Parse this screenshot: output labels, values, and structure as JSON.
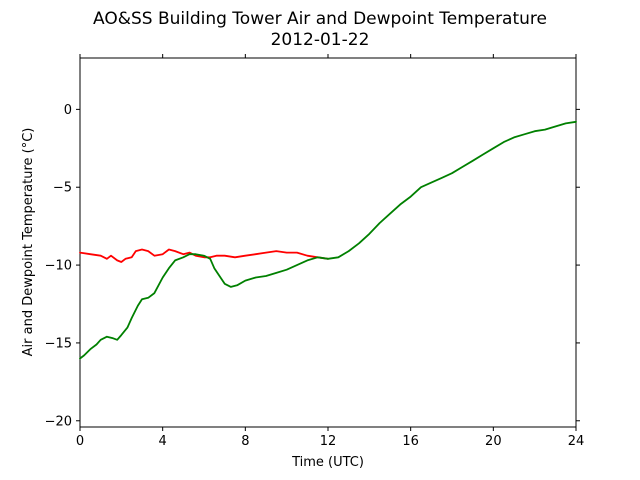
{
  "chart_data": {
    "type": "line",
    "title": "AO&SS Building Tower Air and Dewpoint Temperature",
    "subtitle": "2012-01-22",
    "xlabel": "Time (UTC)",
    "ylabel": "Air and Dewpoint Temperature (°C)",
    "xlim": [
      0,
      24
    ],
    "ylim": [
      -20.4,
      3.3
    ],
    "xticks": [
      0,
      4,
      8,
      12,
      16,
      20,
      24
    ],
    "yticks": [
      -20,
      -15,
      -10,
      -5,
      0
    ],
    "xtick_labels": [
      "0",
      "4",
      "8",
      "12",
      "16",
      "20",
      "24"
    ],
    "ytick_labels": [
      "−20",
      "−15",
      "−10",
      "−5",
      "0"
    ],
    "grid": false,
    "series": [
      {
        "color": "#ff0000",
        "x": [
          0,
          0.5,
          1,
          1.3,
          1.5,
          1.8,
          2.0,
          2.2,
          2.5,
          2.7,
          3.0,
          3.3,
          3.6,
          4.0,
          4.3,
          4.6,
          5.0,
          5.3,
          5.6,
          6.0,
          6.3,
          6.6,
          7.0,
          7.5,
          8.0,
          8.5,
          9.0,
          9.5,
          10.0,
          10.5,
          11.0,
          11.5,
          12.0
        ],
        "y": [
          -9.2,
          -9.3,
          -9.4,
          -9.6,
          -9.4,
          -9.7,
          -9.8,
          -9.6,
          -9.5,
          -9.1,
          -9.0,
          -9.1,
          -9.4,
          -9.3,
          -9.0,
          -9.1,
          -9.3,
          -9.2,
          -9.4,
          -9.5,
          -9.5,
          -9.4,
          -9.4,
          -9.5,
          -9.4,
          -9.3,
          -9.2,
          -9.1,
          -9.2,
          -9.2,
          -9.4,
          -9.5,
          -9.6
        ]
      },
      {
        "color": "#008000",
        "x": [
          0,
          0.2,
          0.5,
          0.8,
          1.0,
          1.3,
          1.6,
          1.8,
          2.0,
          2.3,
          2.5,
          2.8,
          3.0,
          3.3,
          3.6,
          4.0,
          4.3,
          4.6,
          5.0,
          5.3,
          5.6,
          6.0,
          6.3,
          6.5,
          6.8,
          7.0,
          7.3,
          7.6,
          8.0,
          8.5,
          9.0,
          9.5,
          10.0,
          10.5,
          11.0,
          11.5,
          12.0,
          12.5,
          13.0,
          13.5,
          14.0,
          14.5,
          15.0,
          15.5,
          16.0,
          16.5,
          17.0,
          17.5,
          18.0,
          18.5,
          19.0,
          19.5,
          20.0,
          20.5,
          21.0,
          21.5,
          22.0,
          22.5,
          23.0,
          23.5,
          24.0
        ],
        "y": [
          -16.0,
          -15.8,
          -15.4,
          -15.1,
          -14.8,
          -14.6,
          -14.7,
          -14.8,
          -14.5,
          -14.0,
          -13.4,
          -12.6,
          -12.2,
          -12.1,
          -11.8,
          -10.8,
          -10.2,
          -9.7,
          -9.5,
          -9.3,
          -9.3,
          -9.4,
          -9.6,
          -10.2,
          -10.8,
          -11.2,
          -11.4,
          -11.3,
          -11.0,
          -10.8,
          -10.7,
          -10.5,
          -10.3,
          -10.0,
          -9.7,
          -9.5,
          -9.6,
          -9.5,
          -9.1,
          -8.6,
          -8.0,
          -7.3,
          -6.7,
          -6.1,
          -5.6,
          -5.0,
          -4.7,
          -4.4,
          -4.1,
          -3.7,
          -3.3,
          -2.9,
          -2.5,
          -2.1,
          -1.8,
          -1.6,
          -1.4,
          -1.3,
          -1.1,
          -0.9,
          -0.8
        ]
      }
    ]
  }
}
